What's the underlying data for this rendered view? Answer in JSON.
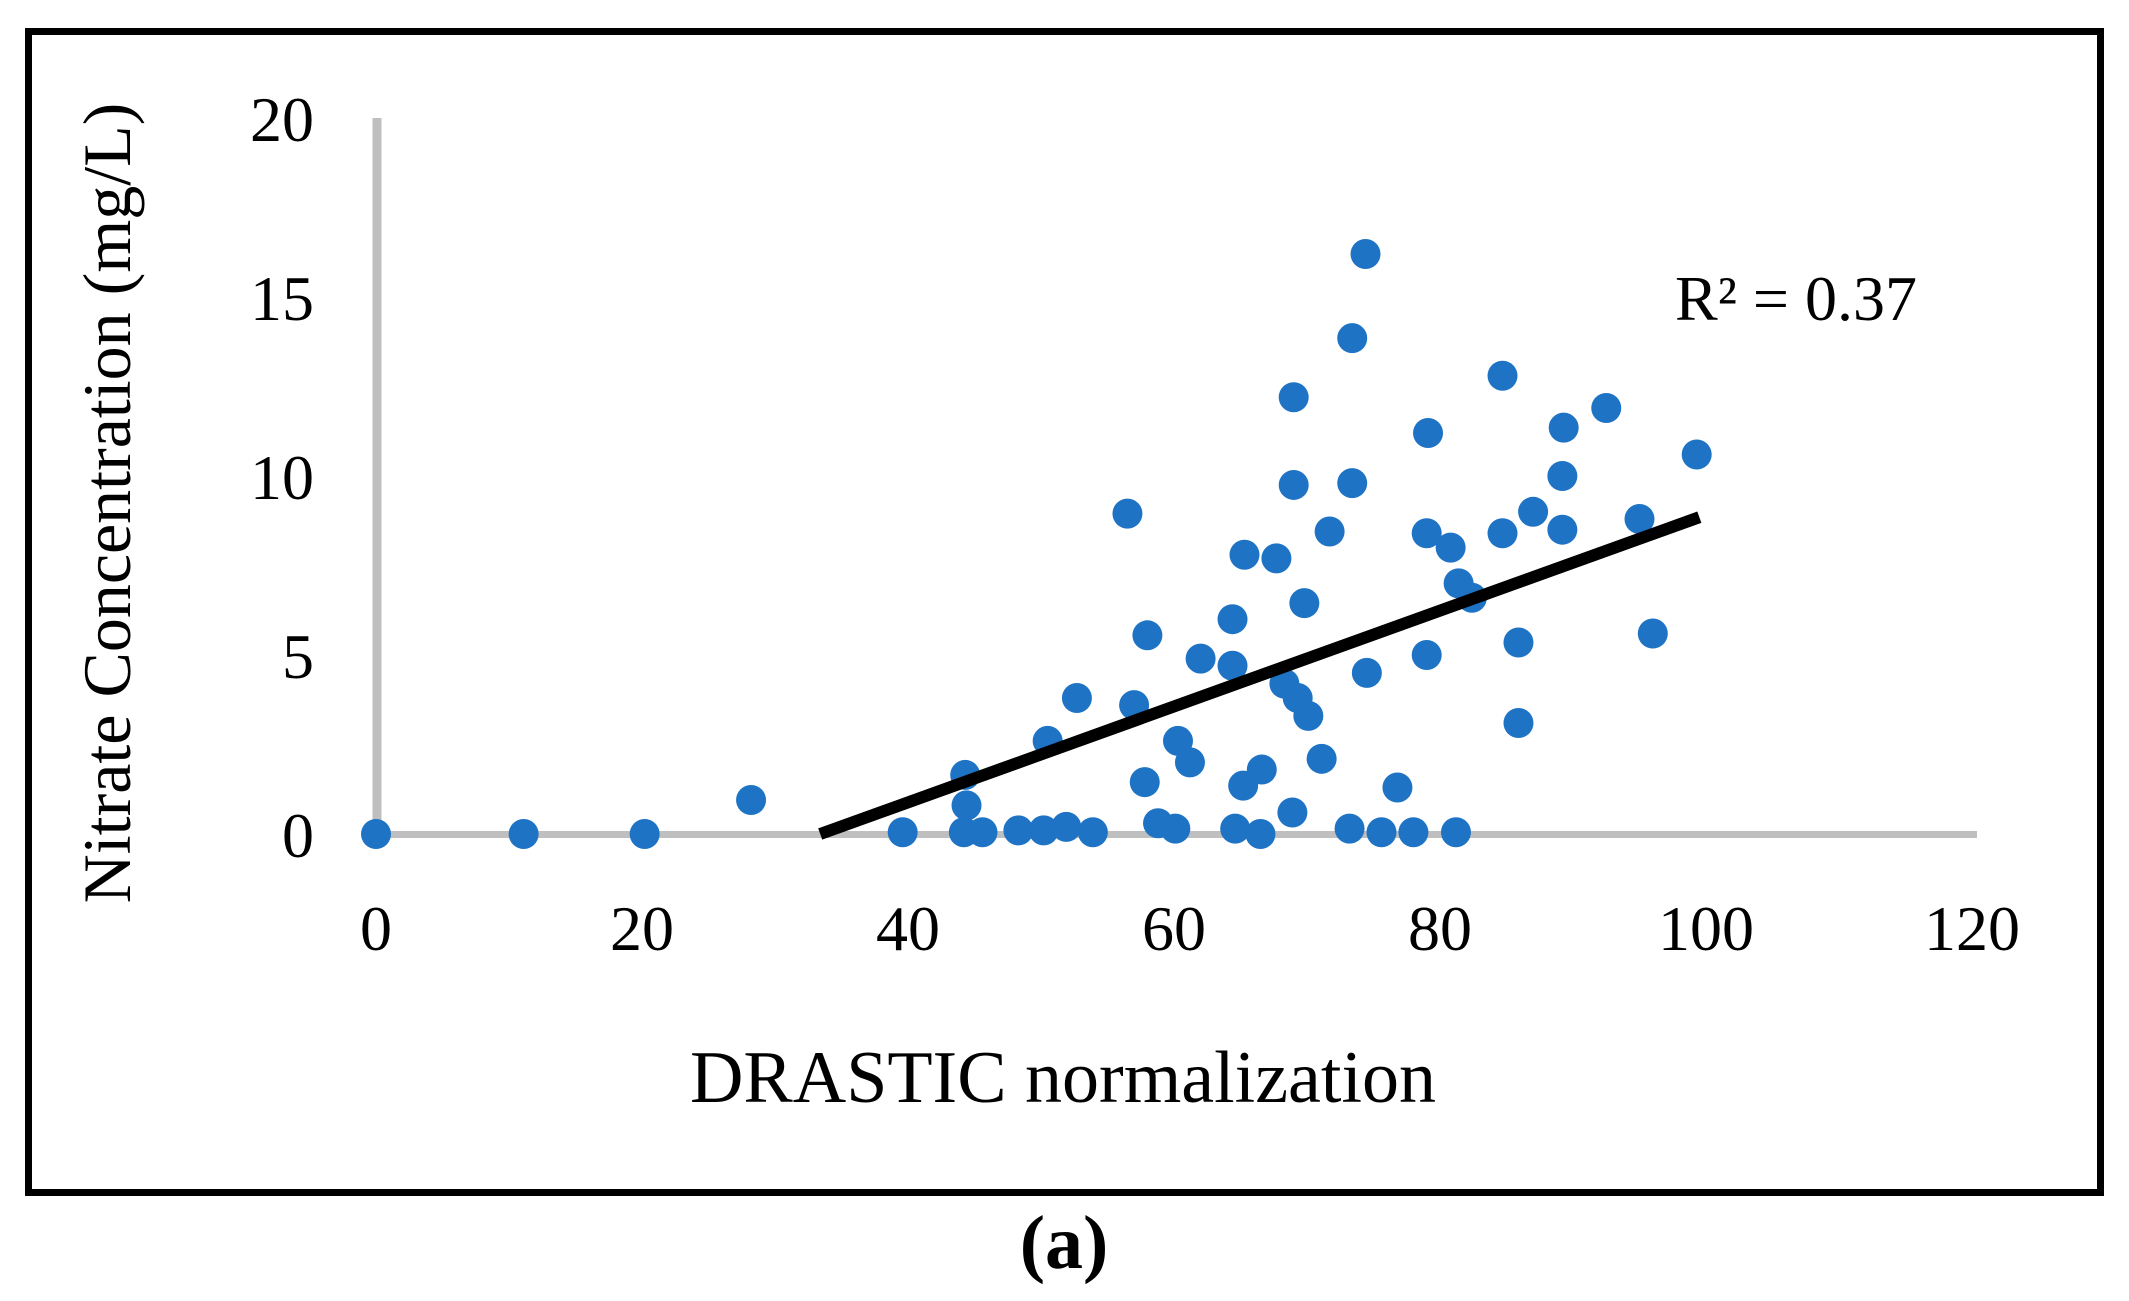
{
  "figure": {
    "caption": "(a)",
    "annotation": "R² = 0.37"
  },
  "chart_data": {
    "type": "scatter",
    "title": "",
    "xlabel": "DRASTIC normalization",
    "ylabel": "Nitrate Concentration (mg/L)",
    "xlim": [
      0,
      120
    ],
    "ylim": [
      0,
      20
    ],
    "xticks": [
      0,
      20,
      40,
      60,
      80,
      100,
      120
    ],
    "yticks": [
      0,
      5,
      10,
      15,
      20
    ],
    "grid": false,
    "legend": false,
    "annotation_text": "R² = 0.37",
    "r_squared": 0.37,
    "points": [
      [
        0,
        0
      ],
      [
        11.1,
        0
      ],
      [
        20.2,
        0
      ],
      [
        28.2,
        0.95
      ],
      [
        39.6,
        0.05
      ],
      [
        44.3,
        1.65
      ],
      [
        44.4,
        0.8
      ],
      [
        44.2,
        0.05
      ],
      [
        45.6,
        0.05
      ],
      [
        48.3,
        0.1
      ],
      [
        50.2,
        0.1
      ],
      [
        51.9,
        0.2
      ],
      [
        53.9,
        0.05
      ],
      [
        58.8,
        0.3
      ],
      [
        60.1,
        0.15
      ],
      [
        64.6,
        0.15
      ],
      [
        66.5,
        0
      ],
      [
        68.9,
        0.6
      ],
      [
        73.2,
        0.15
      ],
      [
        75.6,
        0.05
      ],
      [
        78,
        0.05
      ],
      [
        81.2,
        0.05
      ],
      [
        57.8,
        1.45
      ],
      [
        65.2,
        1.35
      ],
      [
        66.6,
        1.8
      ],
      [
        76.8,
        1.3
      ],
      [
        50.5,
        2.6
      ],
      [
        60.3,
        2.6
      ],
      [
        61.2,
        2.0
      ],
      [
        71.1,
        2.1
      ],
      [
        52.7,
        3.8
      ],
      [
        57,
        3.6
      ],
      [
        70.1,
        3.3
      ],
      [
        69.3,
        3.8
      ],
      [
        68.3,
        4.2
      ],
      [
        85.9,
        3.1
      ],
      [
        74.5,
        4.5
      ],
      [
        62,
        4.9
      ],
      [
        64.4,
        4.7
      ],
      [
        79,
        5.0
      ],
      [
        85.9,
        5.35
      ],
      [
        96,
        5.6
      ],
      [
        58,
        5.55
      ],
      [
        64.4,
        6.0
      ],
      [
        69.8,
        6.45
      ],
      [
        81.4,
        7.0
      ],
      [
        82.4,
        6.6
      ],
      [
        65.3,
        7.8
      ],
      [
        67.7,
        7.7
      ],
      [
        71.7,
        8.45
      ],
      [
        79,
        8.4
      ],
      [
        80.8,
        8.0
      ],
      [
        84.7,
        8.4
      ],
      [
        87,
        9.0
      ],
      [
        89.2,
        8.5
      ],
      [
        95,
        8.8
      ],
      [
        56.5,
        8.95
      ],
      [
        69,
        9.75
      ],
      [
        73.4,
        9.8
      ],
      [
        89.2,
        10.0
      ],
      [
        99.3,
        10.6
      ],
      [
        79.1,
        11.2
      ],
      [
        89.3,
        11.35
      ],
      [
        92.5,
        11.9
      ],
      [
        69,
        12.2
      ],
      [
        84.7,
        12.8
      ],
      [
        73.4,
        13.85
      ],
      [
        74.4,
        16.2
      ]
    ],
    "trendline": {
      "x1": 33.4,
      "y1": 0,
      "x2": 99.5,
      "y2": 8.85
    },
    "colors": {
      "point": "#1E73C4",
      "trendline": "#000000",
      "axis_line": "#BFBFBF",
      "text": "#000000",
      "border": "#000000"
    }
  }
}
